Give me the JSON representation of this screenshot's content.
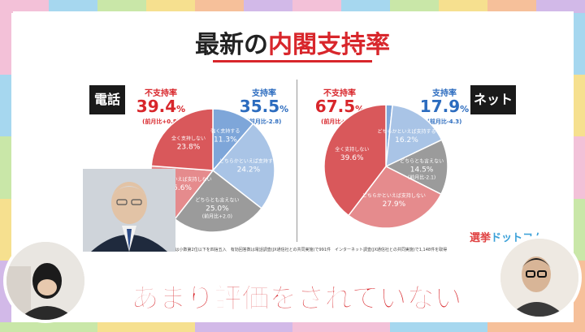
{
  "colors": {
    "red": "#d8262b",
    "blue": "#2c6cbf",
    "pie_blue_dark": "#7ea6d9",
    "pie_blue_light": "#a9c4e6",
    "pie_gray": "#9b9b9b",
    "pie_red_light": "#e58b8d",
    "pie_red_dark": "#d9585b"
  },
  "title": {
    "prefix": "最新の",
    "highlight": "内閣支持率"
  },
  "phone": {
    "badge": "電話",
    "disapprove": {
      "label": "不支持率",
      "value": "39.4",
      "unit": "%",
      "change": "(前月比+0.8)"
    },
    "approve": {
      "label": "支持率",
      "value": "35.5",
      "unit": "%",
      "change": "(前月比-2.8)"
    }
  },
  "net": {
    "badge": "ネット",
    "disapprove": {
      "label": "不支持率",
      "value": "67.5",
      "unit": "%",
      "change": "(前月比+6.3)"
    },
    "approve": {
      "label": "支持率",
      "value": "17.9",
      "unit": "%",
      "change": "(前月比-4.3)"
    }
  },
  "chart_data": [
    {
      "type": "pie",
      "title": "電話",
      "slices": [
        {
          "label": "強く支持する",
          "value": 11.3,
          "color": "#7ea6d9",
          "text": "11.3%"
        },
        {
          "label": "どちらかといえば支持する",
          "value": 24.2,
          "color": "#a9c4e6",
          "text": "24.2%"
        },
        {
          "label": "どちらとも言えない",
          "value": 25.0,
          "color": "#9b9b9b",
          "text": "25.0%",
          "note": "(前月比+2.0)"
        },
        {
          "label": "どちらかといえば支持しない",
          "value": 15.6,
          "color": "#e58b8d",
          "text": "15.6%"
        },
        {
          "label": "全く支持しない",
          "value": 23.8,
          "color": "#d9585b",
          "text": "23.8%"
        }
      ]
    },
    {
      "type": "pie",
      "title": "ネット",
      "slices": [
        {
          "label": "強く支持する",
          "value": 1.7,
          "color": "#7ea6d9",
          "text": "1.7%"
        },
        {
          "label": "どちらかといえば支持する",
          "value": 16.2,
          "color": "#a9c4e6",
          "text": "16.2%"
        },
        {
          "label": "どちらとも言えない",
          "value": 14.5,
          "color": "#9b9b9b",
          "text": "14.5%",
          "note": "(前月比-2.1)"
        },
        {
          "label": "どちらかといえば支持しない",
          "value": 27.9,
          "color": "#e58b8d",
          "text": "27.9%"
        },
        {
          "label": "全く支持しない",
          "value": 39.6,
          "color": "#d9585b",
          "text": "39.6%"
        }
      ]
    }
  ],
  "footnote": "※日本国内の18歳以上の方を対象に実施。数字は小数第2位以下を四捨五入　有効回答数は電話調査(JX通信社との共同実施)で991件　インターネット調査(JX通信社との共同実施)で1,148件を取得",
  "brand": {
    "part1": "選挙",
    "part2": "ドットコム"
  },
  "caption": "あまり評価をされていない"
}
